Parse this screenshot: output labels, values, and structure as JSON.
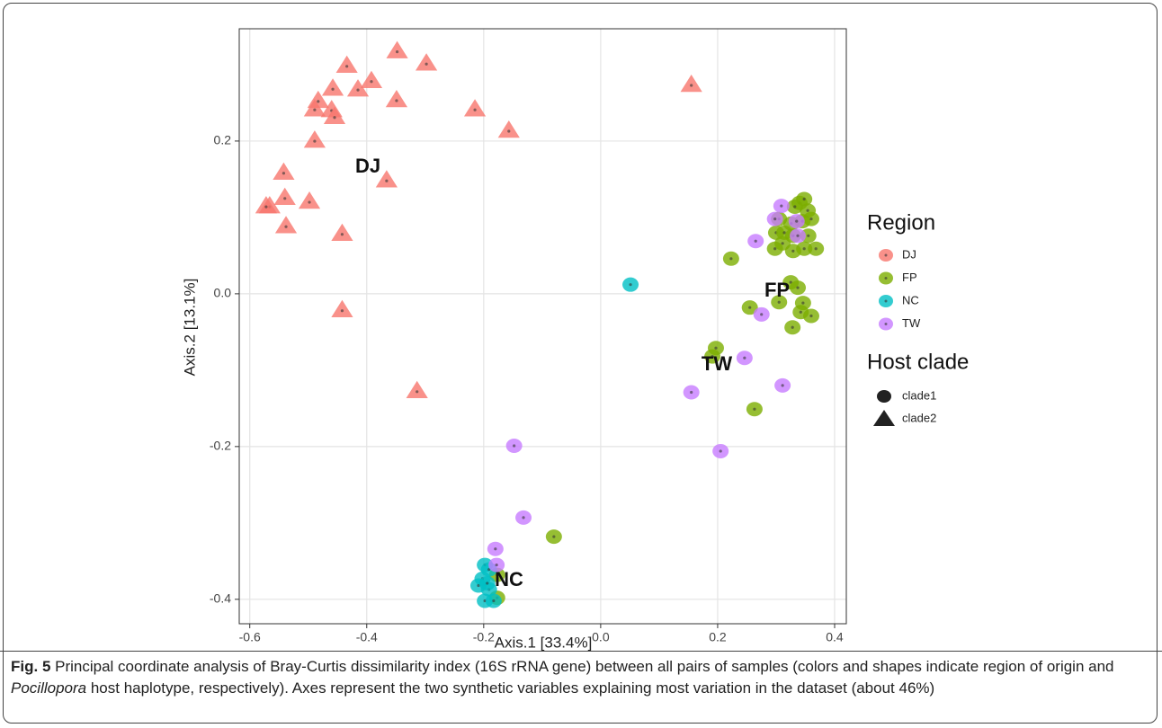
{
  "chart_data": {
    "type": "scatter",
    "xlabel": "Axis.1  [33.4%]",
    "ylabel": "Axis.2  [13.1%]",
    "xlim": [
      -0.618,
      0.42
    ],
    "ylim": [
      -0.432,
      0.347
    ],
    "xticks": [
      -0.6,
      -0.4,
      -0.2,
      {
        "value": 0,
        "label": "0.0"
      },
      0.2,
      0.4
    ],
    "yticks": [
      -0.4,
      -0.2,
      {
        "value": 0,
        "label": "0.0"
      },
      0.2
    ],
    "grid": true,
    "legend_title": "Region",
    "shape_legend": {
      "title": "Host clade",
      "items": [
        "clade1",
        "clade2"
      ]
    },
    "series": [
      {
        "name": "DJ",
        "color": "#f8766d",
        "clade": "clade2",
        "x": [
          -0.348,
          -0.298,
          -0.434,
          -0.392,
          -0.458,
          -0.415,
          -0.349,
          -0.483,
          -0.489,
          -0.46,
          -0.455,
          -0.215,
          -0.157,
          -0.489,
          -0.542,
          -0.366,
          -0.54,
          -0.566,
          -0.572,
          -0.498,
          -0.538,
          -0.442,
          -0.442,
          -0.314,
          0.155
        ],
        "y": [
          0.318,
          0.302,
          0.299,
          0.279,
          0.269,
          0.268,
          0.254,
          0.253,
          0.242,
          0.241,
          0.232,
          0.242,
          0.214,
          0.201,
          0.159,
          0.149,
          0.126,
          0.115,
          0.115,
          0.121,
          0.089,
          0.079,
          -0.021,
          -0.127,
          0.274
        ]
      },
      {
        "name": "FP",
        "color": "#7cae00",
        "clade": "clade1",
        "x": [
          0.223,
          0.255,
          0.305,
          0.325,
          0.337,
          0.346,
          0.342,
          0.36,
          0.328,
          0.197,
          0.191,
          0.263,
          -0.08,
          -0.177,
          -0.177,
          0.3,
          0.314,
          0.329,
          0.355,
          0.368,
          0.348,
          0.329,
          0.298,
          0.311,
          0.326,
          0.345,
          0.36,
          0.354,
          0.34,
          0.348,
          0.332,
          0.305
        ],
        "y": [
          0.046,
          -0.018,
          -0.011,
          0.015,
          0.008,
          -0.012,
          -0.024,
          -0.029,
          -0.044,
          -0.071,
          -0.082,
          -0.151,
          -0.318,
          -0.368,
          -0.398,
          0.08,
          0.08,
          0.076,
          0.076,
          0.059,
          0.059,
          0.056,
          0.059,
          0.066,
          0.092,
          0.095,
          0.098,
          0.109,
          0.119,
          0.124,
          0.114,
          0.098
        ]
      },
      {
        "name": "NC",
        "color": "#00bfc4",
        "clade": "clade1",
        "x": [
          0.051,
          -0.198,
          -0.191,
          -0.202,
          -0.209,
          -0.191,
          -0.198,
          -0.183,
          -0.194
        ],
        "y": [
          0.012,
          -0.355,
          -0.361,
          -0.373,
          -0.382,
          -0.387,
          -0.402,
          -0.402,
          -0.379
        ]
      },
      {
        "name": "TW",
        "color": "#c77cff",
        "clade": "clade1",
        "x": [
          0.309,
          0.298,
          0.335,
          0.337,
          0.265,
          0.275,
          0.246,
          0.155,
          0.311,
          0.205,
          -0.148,
          -0.132,
          -0.18,
          -0.178
        ],
        "y": [
          0.115,
          0.098,
          0.095,
          0.076,
          0.069,
          -0.027,
          -0.084,
          -0.129,
          -0.12,
          -0.206,
          -0.199,
          -0.293,
          -0.334,
          -0.355
        ]
      }
    ],
    "annotations": [
      "DJ",
      "FP",
      "TW",
      "NC"
    ]
  },
  "caption": {
    "label": "Fig. 5",
    "parts": [
      "Principal coordinate analysis of Bray-Curtis dissimilarity index (16S rRNA gene) between all pairs of samples (colors and shapes indicate region of origin and ",
      "Pocillopora",
      " host haplotype, respectively). Axes represent the two synthetic variables explaining most variation in the dataset (about 46%)"
    ]
  }
}
